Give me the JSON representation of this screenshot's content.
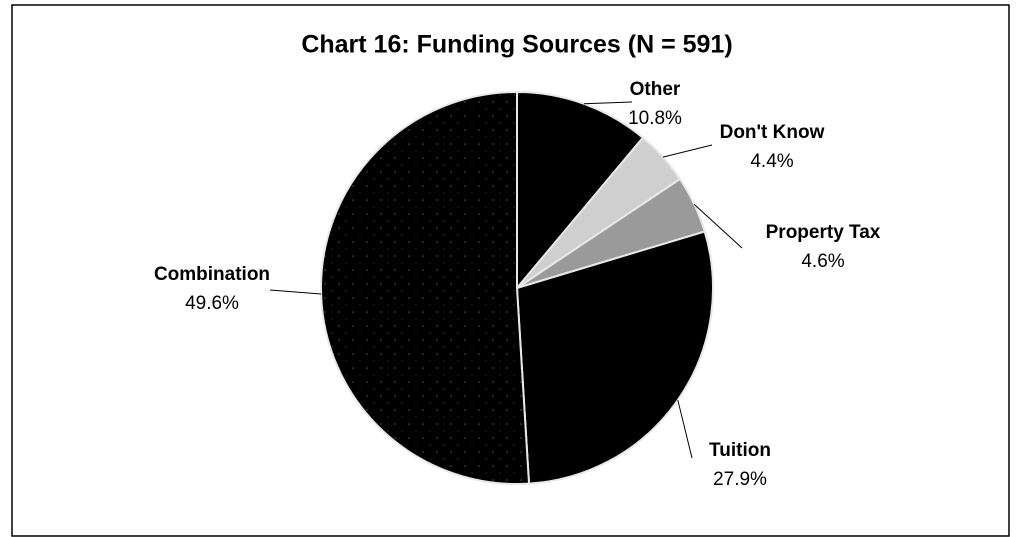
{
  "chart_data": {
    "type": "pie",
    "title": "Chart 16: Funding Sources (N = 591)",
    "categories": [
      "Other",
      "Don't Know",
      "Property Tax",
      "Tuition",
      "Combination"
    ],
    "values": [
      10.8,
      4.4,
      4.6,
      27.9,
      49.6
    ],
    "value_labels": [
      "10.8%",
      "4.4%",
      "4.6%",
      "27.9%",
      "49.6%"
    ],
    "colors": [
      "#000000",
      "#cfcfcf",
      "#9a9a9a",
      "#000000",
      "#111111"
    ]
  }
}
